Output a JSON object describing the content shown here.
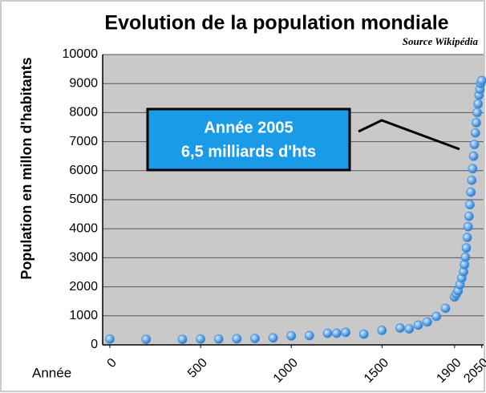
{
  "chart_data": {
    "type": "scatter",
    "title": "Evolution de la population mondiale",
    "subtitle": "Source Wikipédia",
    "y_label": "Population en millon d'habitants",
    "x_label": "Année",
    "annotation": [
      "Année 2005",
      "6,5 milliards d'hts"
    ],
    "color": "#3f95e6",
    "x": [
      0,
      200,
      400,
      500,
      600,
      700,
      800,
      900,
      1000,
      1100,
      1200,
      1250,
      1300,
      1400,
      1500,
      1600,
      1650,
      1700,
      1750,
      1800,
      1850,
      1900,
      1910,
      1920,
      1930,
      1940,
      1950,
      1955,
      1960,
      1965,
      1970,
      1975,
      1980,
      1985,
      1990,
      1995,
      2000,
      2005,
      2010,
      2015,
      2020,
      2025,
      2030,
      2035,
      2040,
      2045,
      2050
    ],
    "values": [
      200,
      190,
      190,
      200,
      200,
      210,
      220,
      240,
      310,
      320,
      400,
      400,
      430,
      370,
      500,
      580,
      550,
      680,
      790,
      980,
      1260,
      1650,
      1750,
      1860,
      2070,
      2300,
      2520,
      2760,
      3020,
      3340,
      3700,
      4070,
      4430,
      4830,
      5260,
      5670,
      6070,
      6500,
      6900,
      7300,
      7650,
      8000,
      8300,
      8600,
      8800,
      9000,
      9100
    ],
    "xlim": [
      -40,
      2060
    ],
    "xticks": [
      0,
      500,
      1000,
      1500,
      1900,
      2050
    ],
    "ylim": [
      0,
      10000
    ],
    "yticks": [
      0,
      1000,
      2000,
      3000,
      4000,
      5000,
      6000,
      7000,
      8000,
      9000,
      10000
    ],
    "grid": true
  }
}
